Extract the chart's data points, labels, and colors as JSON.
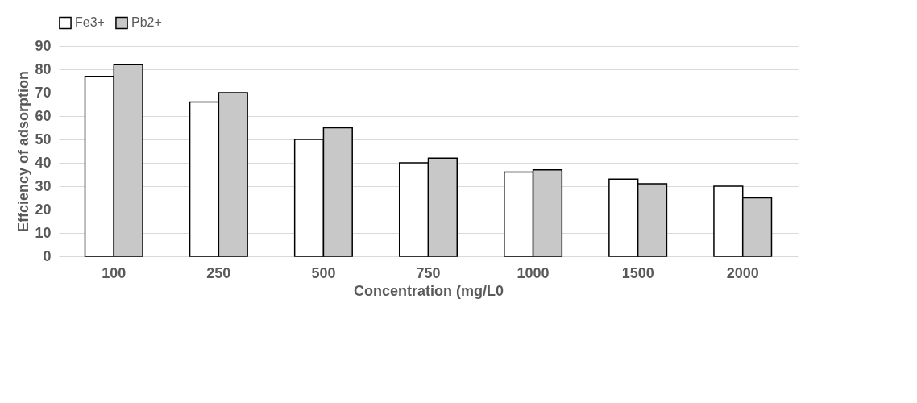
{
  "chart_data": {
    "type": "bar",
    "xlabel": "Concentration (mg/L0",
    "ylabel": "Effciency of adsorption",
    "categories": [
      "100",
      "250",
      "500",
      "750",
      "1000",
      "1500",
      "2000"
    ],
    "series": [
      {
        "name": "Fe3+",
        "color": "#ffffff",
        "values": [
          77,
          66,
          50,
          40,
          36,
          33,
          30
        ]
      },
      {
        "name": "Pb2+",
        "color": "#c8c8c8",
        "values": [
          82,
          70,
          55,
          42,
          37,
          31,
          25
        ]
      }
    ],
    "ylim": [
      0,
      90
    ],
    "yticks": [
      0,
      10,
      20,
      30,
      40,
      50,
      60,
      70,
      80,
      90
    ],
    "grid": "y",
    "legend": "top"
  }
}
